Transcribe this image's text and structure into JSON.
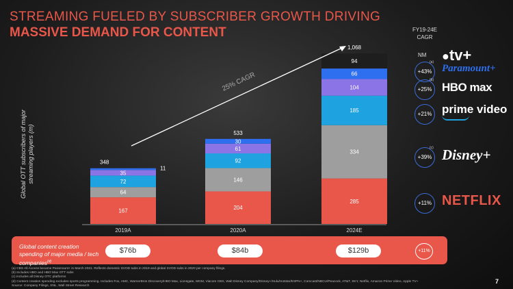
{
  "title_line1": "STREAMING FUELED BY SUBSCRIBER GROWTH DRIVING",
  "title_line2": "MASSIVE DEMAND FOR CONTENT",
  "cagr_header": "FY19-24E CAGR",
  "y_axis_label": "Global OTT subscribers of major streaming players (m)",
  "arrow_label": "25% CAGR",
  "chart_data": {
    "type": "bar",
    "stacked": true,
    "categories": [
      "2019A",
      "2020A",
      "2024E"
    ],
    "series": [
      {
        "name": "Netflix",
        "color": "#e8574a",
        "values": [
          167,
          204,
          285
        ]
      },
      {
        "name": "Disney+",
        "color": "#9e9e9e",
        "values": [
          64,
          146,
          334
        ]
      },
      {
        "name": "Prime Video",
        "color": "#1fa2e0",
        "values": [
          72,
          92,
          185
        ]
      },
      {
        "name": "HBO Max",
        "color": "#8b74e6",
        "values": [
          35,
          61,
          104
        ]
      },
      {
        "name": "Paramount+",
        "color": "#2e6ff0",
        "values": [
          11,
          30,
          66
        ]
      },
      {
        "name": "Apple TV+",
        "color": "#1e1e1e",
        "values": [
          0,
          0,
          94
        ]
      }
    ],
    "totals": [
      348,
      533,
      1068
    ],
    "label_2019_paramount": "11",
    "ylim": [
      0,
      1100
    ]
  },
  "brands": [
    {
      "name": "tv+",
      "cagr": "NM",
      "note": ""
    },
    {
      "name": "Paramount+",
      "cagr": "+43%",
      "note": "(a)"
    },
    {
      "name": "HBO max",
      "cagr": "+25%",
      "note": "(b)"
    },
    {
      "name": "prime video",
      "cagr": "+21%",
      "note": ""
    },
    {
      "name": "Disney+",
      "cagr": "+39%",
      "note": "(c)"
    },
    {
      "name": "NETFLIX",
      "cagr": "+11%",
      "note": ""
    }
  ],
  "content_spending": {
    "label": "Global content creation spending of major media / tech companies",
    "label_note": "(d)",
    "values": [
      "$76b",
      "$84b",
      "$129b"
    ],
    "cagr": "+11%"
  },
  "footnotes": [
    "(a) CBS All Access became Paramount+ in March 2021. Reflects domestic SVOD subs in 2019 and global SVOD subs in 2020 per company filings.",
    "(b) Includes HBO and HBO Max OTT subs",
    "(c) Includes all Disney OTC platforms",
    "(d) Content creation spending excludes sports programming. Includes Fox, AMC, WarnerBros Discovery/HBO Max, Lionsgate, MGM, Viacom CBS, Walt Disney Company/Disney+/Hulu/Hotstar/ESPN+, Comcast/NBCU/Peacock, AT&T, SKY, Netflix, Amazon Prime Video, Apple TV+",
    "Source: Company Filings, SNL, Wall Street Research"
  ],
  "page_number": "7"
}
